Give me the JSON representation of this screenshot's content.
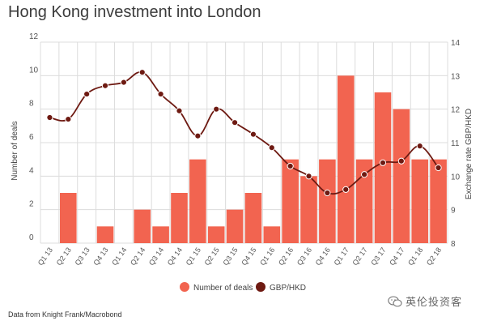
{
  "title": "Hong Kong investment into London",
  "source": "Data from Knight Frank/Macrobond",
  "watermark": "英伦投资客",
  "colors": {
    "bar": "#f26450",
    "line": "#6e1a12",
    "grid": "#dcdcdc",
    "text": "#666666"
  },
  "chart_data": {
    "type": "bar",
    "categories": [
      "Q1 13",
      "Q2 13",
      "Q3 13",
      "Q4 13",
      "Q1 14",
      "Q2 14",
      "Q3 14",
      "Q4 14",
      "Q1 15",
      "Q2 15",
      "Q3 15",
      "Q4 15",
      "Q1 16",
      "Q2 16",
      "Q3 16",
      "Q4 16",
      "Q1 17",
      "Q2 17",
      "Q3 17",
      "Q4 17",
      "Q1 18",
      "Q2 18"
    ],
    "series": [
      {
        "name": "Number of deals",
        "type": "bar",
        "axis": "left",
        "values": [
          0,
          3,
          0,
          1,
          0,
          2,
          1,
          3,
          5,
          1,
          2,
          3,
          1,
          5,
          4,
          5,
          10,
          5,
          9,
          8,
          5,
          5
        ]
      },
      {
        "name": "GBP/HKD",
        "type": "line",
        "axis": "right",
        "values": [
          11.75,
          11.7,
          12.45,
          12.7,
          12.8,
          13.1,
          12.45,
          11.95,
          11.2,
          12.0,
          11.6,
          11.25,
          10.85,
          10.3,
          10.0,
          9.5,
          9.6,
          10.05,
          10.4,
          10.45,
          10.9,
          10.25
        ]
      }
    ],
    "ylabel": "Number of deals",
    "ylabel_right": "Exchange rate GBP/HKD",
    "ylim": [
      0,
      12
    ],
    "ylim_right": [
      8,
      14
    ],
    "yticks": [
      0,
      2,
      4,
      6,
      8,
      10,
      12
    ],
    "yticks_right": [
      8,
      9,
      10,
      11,
      12,
      13,
      14
    ],
    "grid": true,
    "legend_position": "bottom-center"
  }
}
